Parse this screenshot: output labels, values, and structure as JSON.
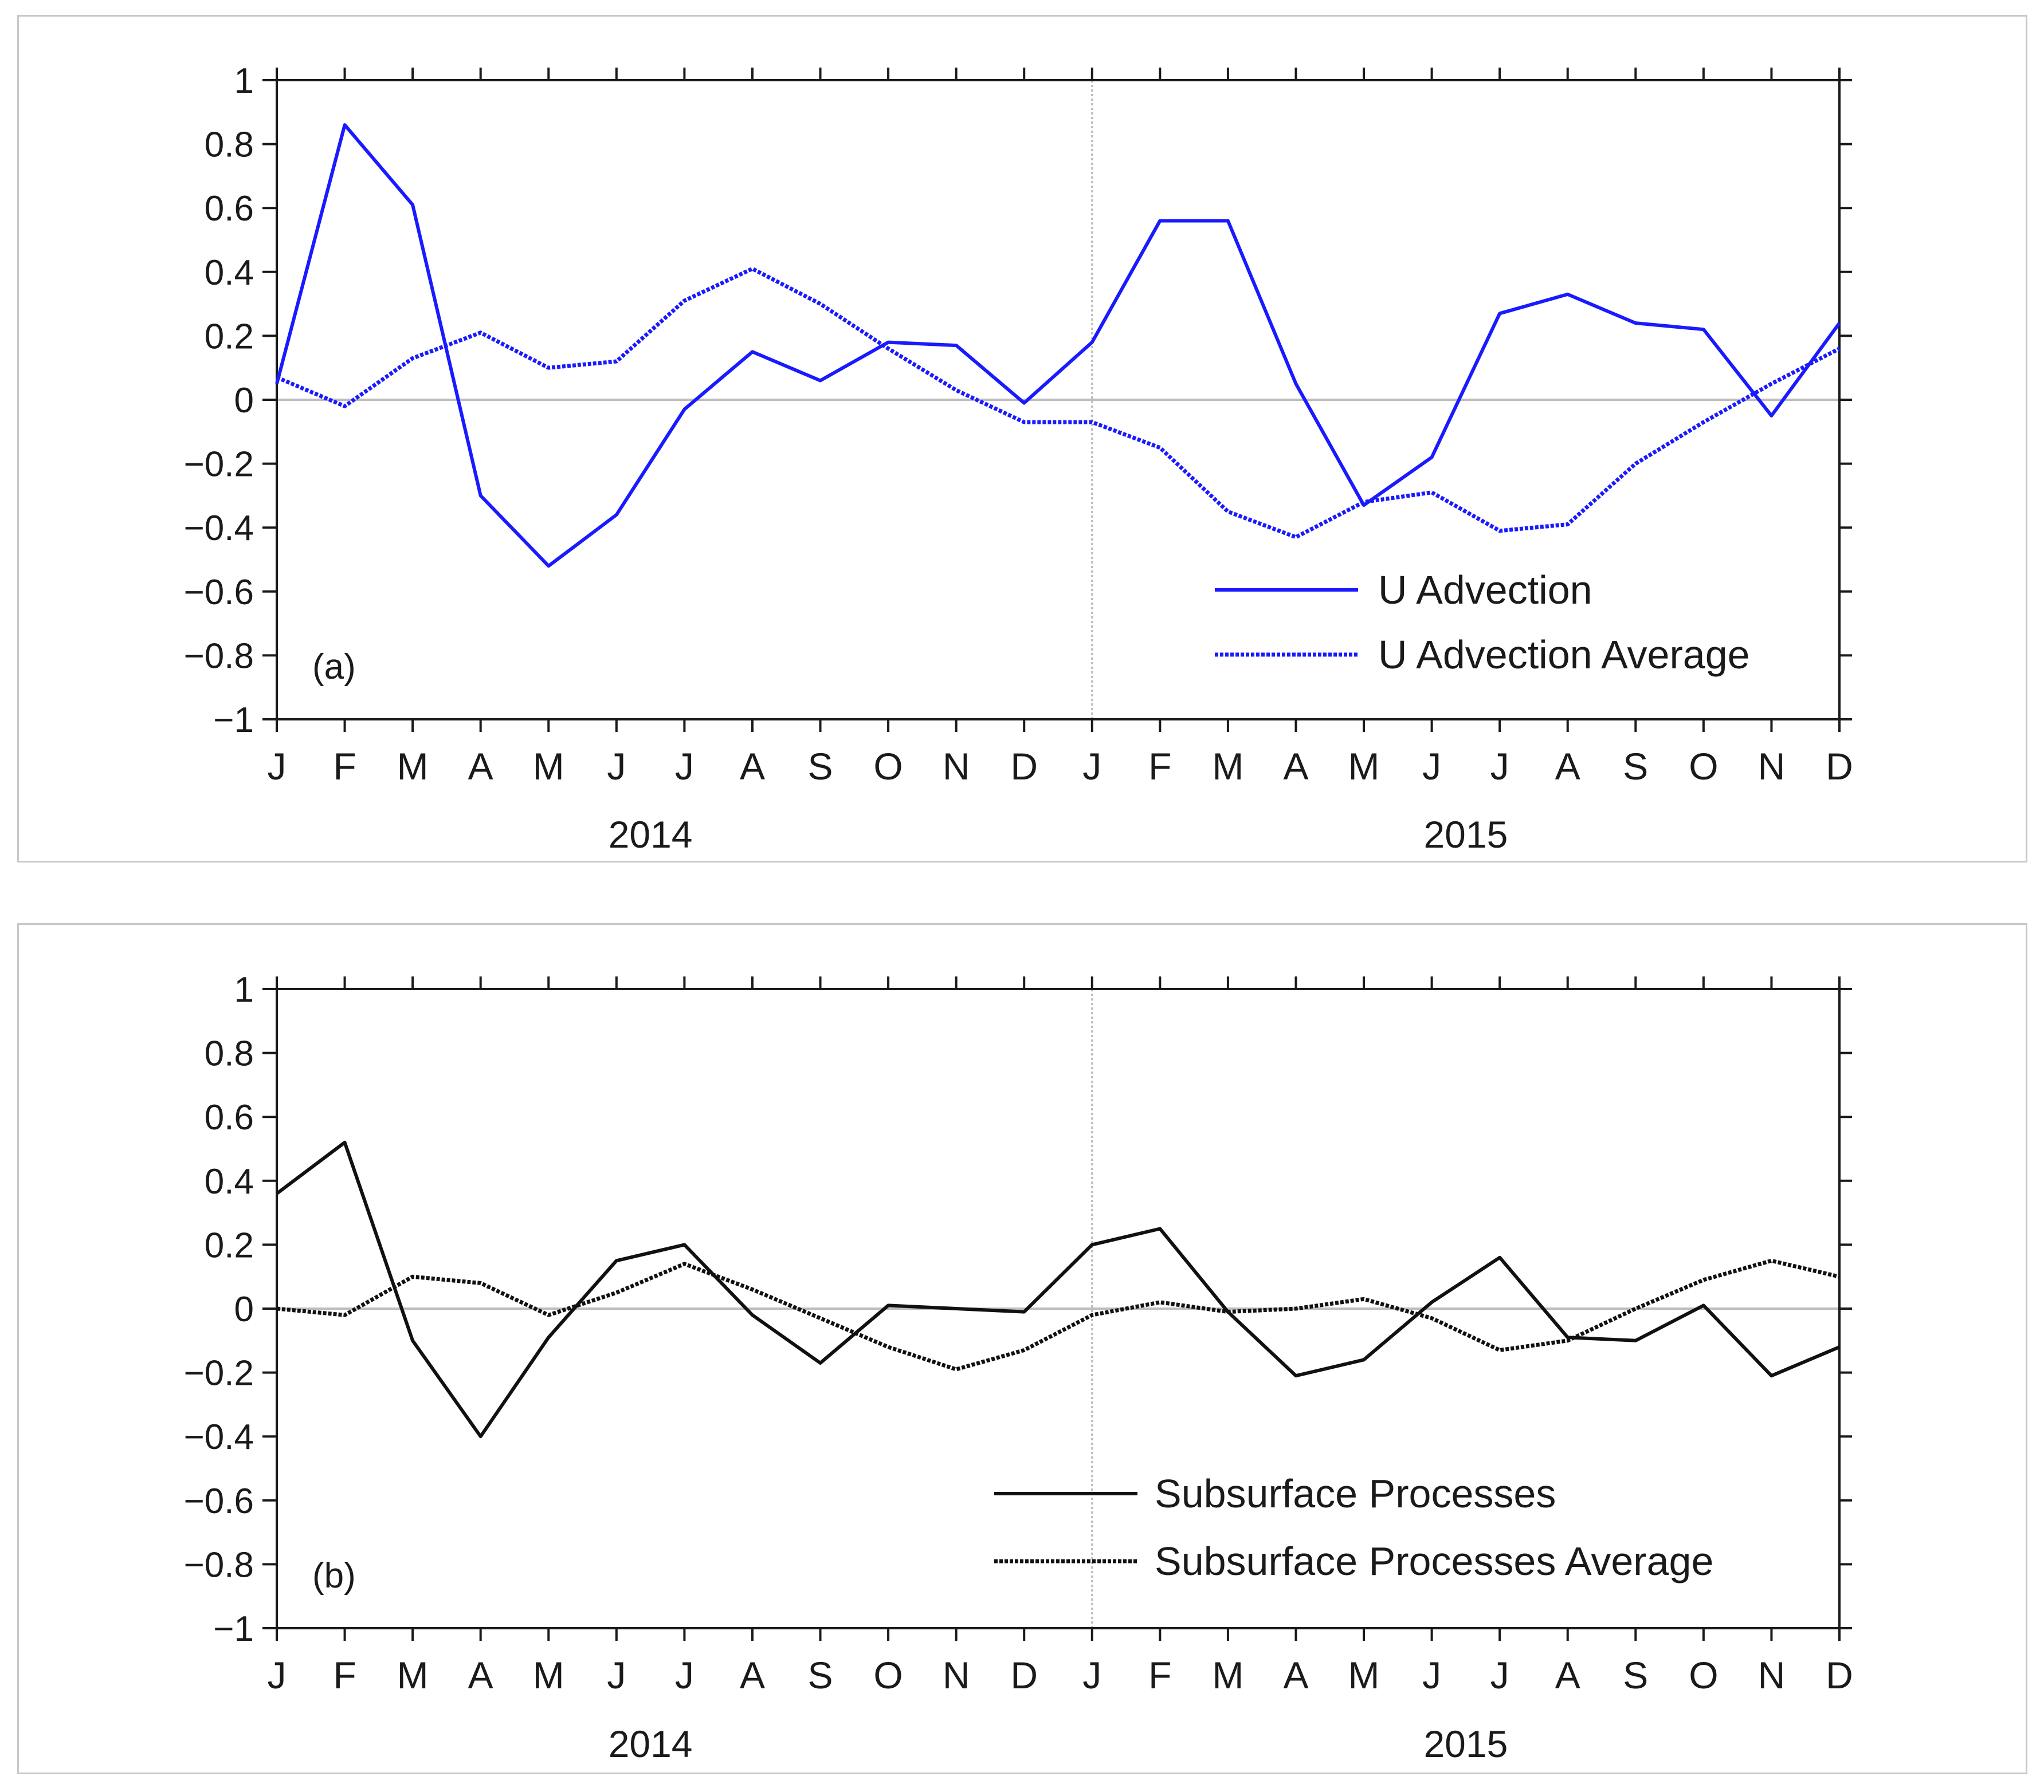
{
  "chart_data": [
    {
      "type": "line",
      "panel_label": "(a)",
      "title": "",
      "xlabel": "",
      "ylabel": "",
      "ylim": [
        -1,
        1
      ],
      "yticks": [
        "1",
        "0.8",
        "0.6",
        "0.4",
        "0.2",
        "0",
        "−0.2",
        "−0.4",
        "−0.6",
        "−0.8",
        "−1"
      ],
      "ytick_values": [
        1,
        0.8,
        0.6,
        0.4,
        0.2,
        0,
        -0.2,
        -0.4,
        -0.6,
        -0.8,
        -1
      ],
      "categories": [
        "J",
        "F",
        "M",
        "A",
        "M",
        "J",
        "J",
        "A",
        "S",
        "O",
        "N",
        "D",
        "J",
        "F",
        "M",
        "A",
        "M",
        "J",
        "J",
        "A",
        "S",
        "O",
        "N",
        "D"
      ],
      "year_labels": [
        "2014",
        "2015"
      ],
      "color": "#1a1aff",
      "legend_position": "bottom-right",
      "series": [
        {
          "name": "U Advection",
          "style": "solid",
          "values": [
            0.05,
            0.86,
            0.61,
            -0.3,
            -0.52,
            -0.36,
            -0.03,
            0.15,
            0.06,
            0.18,
            0.17,
            -0.01,
            0.18,
            0.56,
            0.56,
            0.05,
            -0.33,
            -0.18,
            0.27,
            0.33,
            0.24,
            0.22,
            -0.05,
            0.24
          ]
        },
        {
          "name": "U Advection Average",
          "style": "dotted",
          "values": [
            0.07,
            -0.02,
            0.13,
            0.21,
            0.1,
            0.12,
            0.31,
            0.41,
            0.3,
            0.16,
            0.03,
            -0.07,
            -0.07,
            -0.15,
            -0.35,
            -0.43,
            -0.32,
            -0.29,
            -0.41,
            -0.39,
            -0.2,
            -0.07,
            0.05,
            0.16
          ]
        }
      ]
    },
    {
      "type": "line",
      "panel_label": "(b)",
      "title": "",
      "xlabel": "",
      "ylabel": "",
      "ylim": [
        -1,
        1
      ],
      "yticks": [
        "1",
        "0.8",
        "0.6",
        "0.4",
        "0.2",
        "0",
        "−0.2",
        "−0.4",
        "−0.6",
        "−0.8",
        "−1"
      ],
      "ytick_values": [
        1,
        0.8,
        0.6,
        0.4,
        0.2,
        0,
        -0.2,
        -0.4,
        -0.6,
        -0.8,
        -1
      ],
      "categories": [
        "J",
        "F",
        "M",
        "A",
        "M",
        "J",
        "J",
        "A",
        "S",
        "O",
        "N",
        "D",
        "J",
        "F",
        "M",
        "A",
        "M",
        "J",
        "J",
        "A",
        "S",
        "O",
        "N",
        "D"
      ],
      "year_labels": [
        "2014",
        "2015"
      ],
      "color": "#111111",
      "legend_position": "bottom-right",
      "series": [
        {
          "name": "Subsurface Processes",
          "style": "solid",
          "values": [
            0.36,
            0.52,
            -0.1,
            -0.4,
            -0.09,
            0.15,
            0.2,
            -0.02,
            -0.17,
            0.01,
            0.0,
            -0.01,
            0.2,
            0.25,
            -0.01,
            -0.21,
            -0.16,
            0.02,
            0.16,
            -0.09,
            -0.1,
            0.01,
            -0.21,
            -0.12
          ]
        },
        {
          "name": "Subsurface Processes Average",
          "style": "dotted",
          "values": [
            0.0,
            -0.02,
            0.1,
            0.08,
            -0.02,
            0.05,
            0.14,
            0.06,
            -0.03,
            -0.12,
            -0.19,
            -0.13,
            -0.02,
            0.02,
            -0.01,
            0.0,
            0.03,
            -0.03,
            -0.13,
            -0.1,
            0.0,
            0.09,
            0.15,
            0.1
          ]
        }
      ]
    }
  ]
}
